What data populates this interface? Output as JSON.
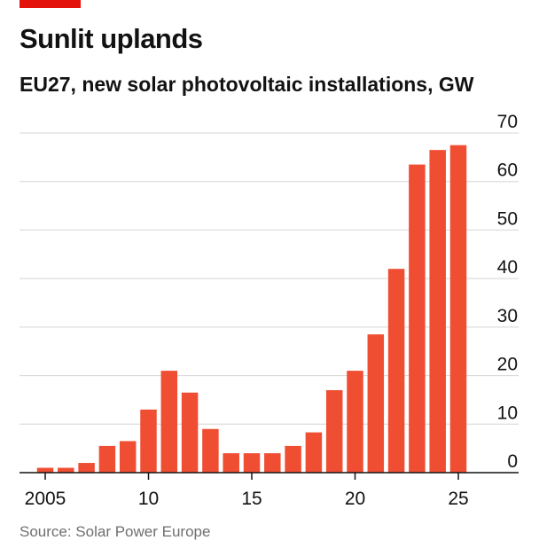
{
  "header": {
    "title": "Sunlit uplands",
    "subtitle": "EU27, new solar photovoltaic installations, GW"
  },
  "footer": {
    "source": "Source: Solar Power Europe"
  },
  "colors": {
    "accent": "#e3120b",
    "bar": "#f04e33",
    "grid": "#d5d5d5",
    "axis": "#121212"
  },
  "chart_data": {
    "type": "bar",
    "categories": [
      "2005",
      "2006",
      "2007",
      "2008",
      "2009",
      "2010",
      "2011",
      "2012",
      "2013",
      "2014",
      "2015",
      "2016",
      "2017",
      "2018",
      "2019",
      "2020",
      "2021",
      "2022",
      "2023",
      "2024",
      "2025"
    ],
    "values": [
      1,
      1,
      2,
      5.5,
      6.5,
      13,
      21,
      16.5,
      9,
      4,
      4,
      4,
      5.5,
      8.3,
      17,
      21,
      28.5,
      42,
      63.5,
      66.5,
      67.5
    ],
    "ylim": [
      0,
      70
    ],
    "yticks": [
      "0",
      "10",
      "20",
      "30",
      "40",
      "50",
      "60",
      "70"
    ],
    "xtick_labels": [
      {
        "category": "2005",
        "label": "2005"
      },
      {
        "category": "2010",
        "label": "10"
      },
      {
        "category": "2015",
        "label": "15"
      },
      {
        "category": "2020",
        "label": "20"
      },
      {
        "category": "2025",
        "label": "25"
      }
    ],
    "y_axis_side": "right",
    "grid": true
  }
}
